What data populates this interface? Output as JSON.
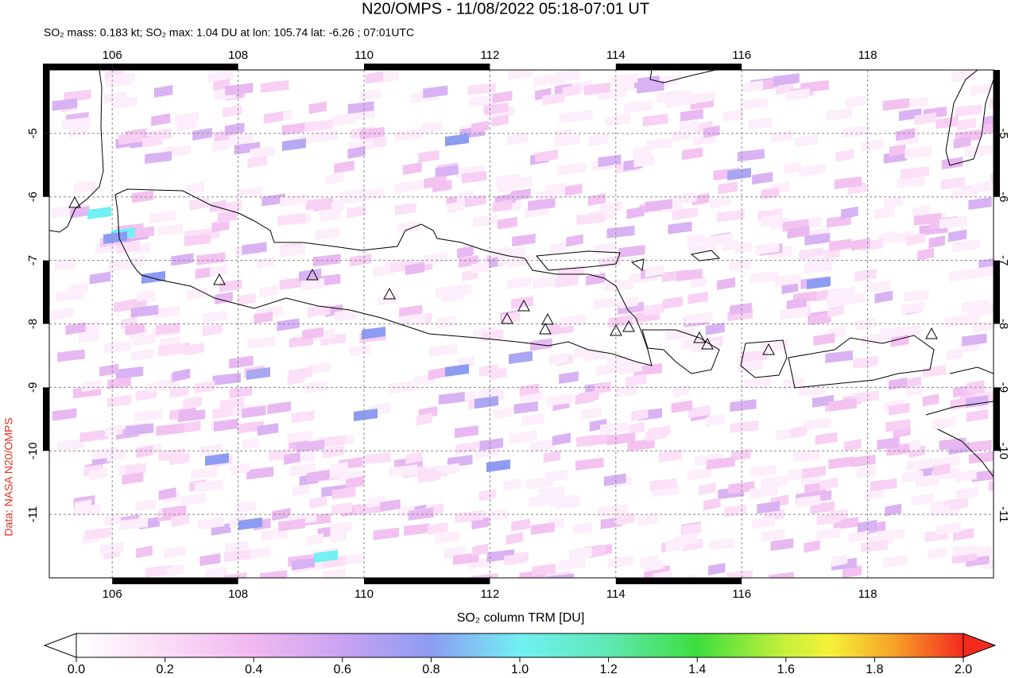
{
  "title": "N20/OMPS - 11/08/2022 05:18-07:01 UT",
  "subtitle": "SO₂ mass: 0.183 kt; SO₂ max: 1.04 DU at lon: 105.74 lat: -6.26 ; 07:01UTC",
  "credit": "Data: NASA N20/OMPS",
  "map": {
    "xlim": [
      105,
      120
    ],
    "ylim": [
      -12,
      -4
    ],
    "xticks": [
      106,
      108,
      110,
      112,
      114,
      116,
      118
    ],
    "yticks": [
      -5,
      -6,
      -7,
      -8,
      -9,
      -10,
      -11
    ],
    "grid": true
  },
  "colorbar": {
    "label": "SO₂ column TRM [DU]",
    "lim": [
      0,
      2
    ],
    "ticks": [
      {
        "value": 0,
        "label": "0.0"
      },
      0.2,
      0.4,
      0.6,
      0.8,
      {
        "value": 1,
        "label": "1.0"
      },
      1.2,
      1.4,
      1.6,
      1.8,
      {
        "value": 2,
        "label": "2.0"
      }
    ]
  }
}
